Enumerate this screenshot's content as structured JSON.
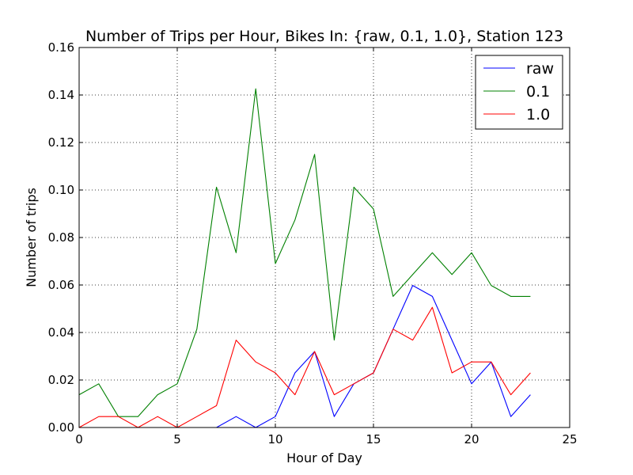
{
  "chart_data": {
    "type": "line",
    "title": "Number of Trips per Hour, Bikes In: {raw, 0.1, 1.0}, Station 123",
    "xlabel": "Hour of Day",
    "ylabel": "Number of trips",
    "xlim": [
      0,
      25
    ],
    "ylim": [
      0,
      0.16
    ],
    "xticks": [
      0,
      5,
      10,
      15,
      20,
      25
    ],
    "yticks": [
      0.0,
      0.02,
      0.04,
      0.06,
      0.08,
      0.1,
      0.12,
      0.14,
      0.16
    ],
    "xtick_labels": [
      "0",
      "5",
      "10",
      "15",
      "20",
      "25"
    ],
    "ytick_labels": [
      "0.00",
      "0.02",
      "0.04",
      "0.06",
      "0.08",
      "0.10",
      "0.12",
      "0.14",
      "0.16"
    ],
    "grid": true,
    "legend_position": "top-right",
    "x": [
      0,
      1,
      2,
      3,
      4,
      5,
      6,
      7,
      8,
      9,
      10,
      11,
      12,
      13,
      14,
      15,
      16,
      17,
      18,
      19,
      20,
      21,
      22,
      23
    ],
    "series": [
      {
        "name": "raw",
        "color": "#0000ff",
        "values": [
          0,
          0,
          0,
          0,
          0,
          0,
          0,
          0,
          0.0046,
          0,
          0.0046,
          0.023,
          0.032,
          0.0046,
          0.0184,
          0.023,
          0.0414,
          0.0598,
          0.0552,
          0.0368,
          0.0184,
          0.0276,
          0.0046,
          0.0138
        ]
      },
      {
        "name": "0.1",
        "color": "#008000",
        "values": [
          0.0138,
          0.0184,
          0.0046,
          0.0046,
          0.0138,
          0.0184,
          0.0414,
          0.1012,
          0.0736,
          0.1426,
          0.069,
          0.0874,
          0.115,
          0.0368,
          0.1012,
          0.092,
          0.0552,
          0.0644,
          0.0736,
          0.0644,
          0.0736,
          0.0598,
          0.0552,
          0.0552
        ]
      },
      {
        "name": "1.0",
        "color": "#ff0000",
        "values": [
          0,
          0.0046,
          0.0046,
          0,
          0.0046,
          0,
          0.0046,
          0.0092,
          0.0368,
          0.0276,
          0.023,
          0.0138,
          0.032,
          0.0138,
          0.0184,
          0.023,
          0.0414,
          0.0368,
          0.0506,
          0.023,
          0.0276,
          0.0276,
          0.0138,
          0.023
        ]
      }
    ]
  }
}
